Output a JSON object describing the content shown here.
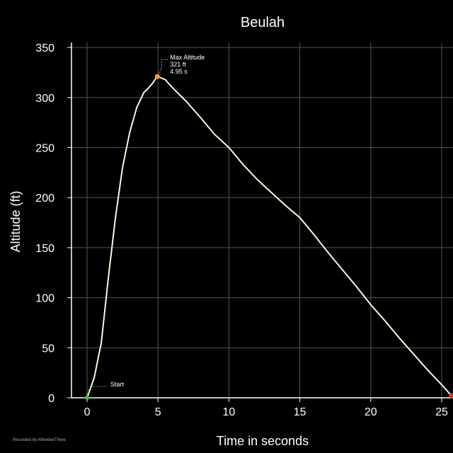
{
  "footer": "Recorded by AltimeterThree",
  "chart_data": {
    "type": "line",
    "title": "Beulah",
    "xlabel": "Time in seconds",
    "ylabel": "Altitude (ft)",
    "xlim": [
      -1.1,
      25.8
    ],
    "ylim": [
      0,
      355
    ],
    "x_ticks": [
      0,
      5,
      10,
      15,
      20,
      25
    ],
    "y_ticks": [
      0,
      50,
      100,
      150,
      200,
      250,
      300,
      350
    ],
    "grid": true,
    "line_color": "#fff4e0",
    "grid_color": "#555555",
    "series": [
      {
        "x": [
          0,
          0.5,
          1.0,
          1.5,
          2.0,
          2.5,
          3.0,
          3.5,
          4.0,
          4.3,
          4.6,
          4.95,
          5.5,
          6.0,
          7.0,
          8.0,
          9.0,
          10.0,
          11.0,
          12.0,
          13.0,
          14.0,
          15.0,
          16.0,
          17.0,
          18.0,
          19.0,
          20.0,
          21.0,
          22.0,
          23.0,
          24.0,
          25.0,
          25.7
        ],
        "y": [
          0,
          20,
          55,
          120,
          180,
          230,
          265,
          290,
          305,
          309,
          314,
          321,
          318,
          310,
          296,
          280,
          263,
          250,
          233,
          218,
          205,
          192,
          180,
          163,
          145,
          128,
          111,
          93,
          77,
          60,
          44,
          28,
          13,
          2
        ]
      }
    ],
    "annotations": {
      "start": {
        "label": "Start",
        "x": 0,
        "y": 0,
        "color": "#3fbf3f"
      },
      "max": {
        "label": "Max Altitude",
        "value": "321 ft",
        "time": "4.95  s",
        "x": 4.95,
        "y": 321,
        "color": "#f0a020"
      },
      "end": {
        "x": 25.7,
        "y": 2,
        "color": "#e03020"
      }
    }
  }
}
